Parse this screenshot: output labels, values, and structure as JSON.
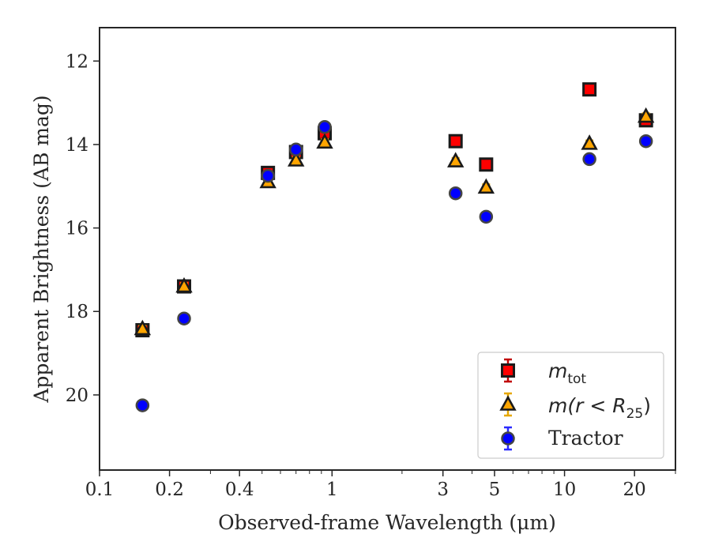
{
  "chart_data": {
    "type": "scatter",
    "xlabel": "Observed-frame Wavelength (μm)",
    "ylabel": "Apparent Brightness (AB mag)",
    "x_scale": "log",
    "xlim": [
      0.1,
      30
    ],
    "ylim": [
      21.8,
      11.2
    ],
    "y_inverted": true,
    "grid": false,
    "legend_position": "lower-right",
    "x_ticks": [
      {
        "value": 0.1,
        "label": "0.1"
      },
      {
        "value": 0.2,
        "label": "0.2"
      },
      {
        "value": 0.4,
        "label": "0.4"
      },
      {
        "value": 1,
        "label": "1"
      },
      {
        "value": 3,
        "label": "3"
      },
      {
        "value": 5,
        "label": "5"
      },
      {
        "value": 10,
        "label": "10"
      },
      {
        "value": 20,
        "label": "20"
      }
    ],
    "y_ticks": [
      {
        "value": 12,
        "label": "12"
      },
      {
        "value": 14,
        "label": "14"
      },
      {
        "value": 16,
        "label": "16"
      },
      {
        "value": 18,
        "label": "18"
      },
      {
        "value": 20,
        "label": "20"
      }
    ],
    "series": [
      {
        "name": "m_tot",
        "label_base": "m",
        "label_sub": "tot",
        "marker": "square",
        "color": "#ff0000",
        "edge": "#1a1a1a",
        "err_color": "#c00000",
        "points": [
          {
            "x": 0.153,
            "y": 18.45
          },
          {
            "x": 0.231,
            "y": 17.4
          },
          {
            "x": 0.53,
            "y": 14.68
          },
          {
            "x": 0.7,
            "y": 14.18
          },
          {
            "x": 0.93,
            "y": 13.73
          },
          {
            "x": 3.4,
            "y": 13.92
          },
          {
            "x": 4.6,
            "y": 14.48
          },
          {
            "x": 12.8,
            "y": 12.68
          },
          {
            "x": 22.4,
            "y": 13.42
          }
        ]
      },
      {
        "name": "m(r < R_25)",
        "label_base": "m(r < R",
        "label_sub": "25",
        "label_end": ")",
        "marker": "triangle",
        "color": "#ffa500",
        "edge": "#1a1a1a",
        "err_color": "#e6a700",
        "points": [
          {
            "x": 0.153,
            "y": 18.42
          },
          {
            "x": 0.231,
            "y": 17.4
          },
          {
            "x": 0.53,
            "y": 14.9
          },
          {
            "x": 0.7,
            "y": 14.38
          },
          {
            "x": 0.93,
            "y": 13.95
          },
          {
            "x": 3.4,
            "y": 14.4
          },
          {
            "x": 4.6,
            "y": 15.03
          },
          {
            "x": 12.8,
            "y": 13.98
          },
          {
            "x": 22.4,
            "y": 13.33
          }
        ]
      },
      {
        "name": "Tractor",
        "marker": "circle",
        "color": "#0000ff",
        "edge": "#444444",
        "err_color": "#2a2aff",
        "points": [
          {
            "x": 0.153,
            "y": 20.25
          },
          {
            "x": 0.231,
            "y": 18.17
          },
          {
            "x": 0.53,
            "y": 14.75
          },
          {
            "x": 0.7,
            "y": 14.12
          },
          {
            "x": 0.93,
            "y": 13.58
          },
          {
            "x": 3.4,
            "y": 15.17
          },
          {
            "x": 4.6,
            "y": 15.73
          },
          {
            "x": 12.8,
            "y": 14.35
          },
          {
            "x": 22.4,
            "y": 13.92
          }
        ]
      }
    ]
  }
}
